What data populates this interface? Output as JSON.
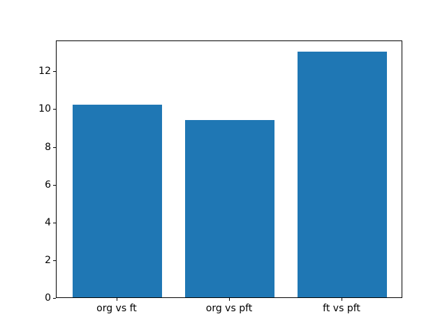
{
  "chart_data": {
    "type": "bar",
    "title": "",
    "xlabel": "",
    "ylabel": "",
    "categories": [
      "org vs ft",
      "org vs pft",
      "ft vs pft"
    ],
    "values": [
      10.2,
      9.4,
      13.0
    ],
    "yticks": [
      0,
      2,
      4,
      6,
      8,
      10,
      12
    ],
    "ylim": [
      0,
      13.65
    ],
    "xlim": [
      -0.54,
      2.54
    ],
    "bar_width": 0.8,
    "bar_color": "#1f77b4",
    "background_color": "#ffffff",
    "spine_color": "#000000",
    "tick_label_color": "#000000",
    "grid": false,
    "legend": null
  }
}
